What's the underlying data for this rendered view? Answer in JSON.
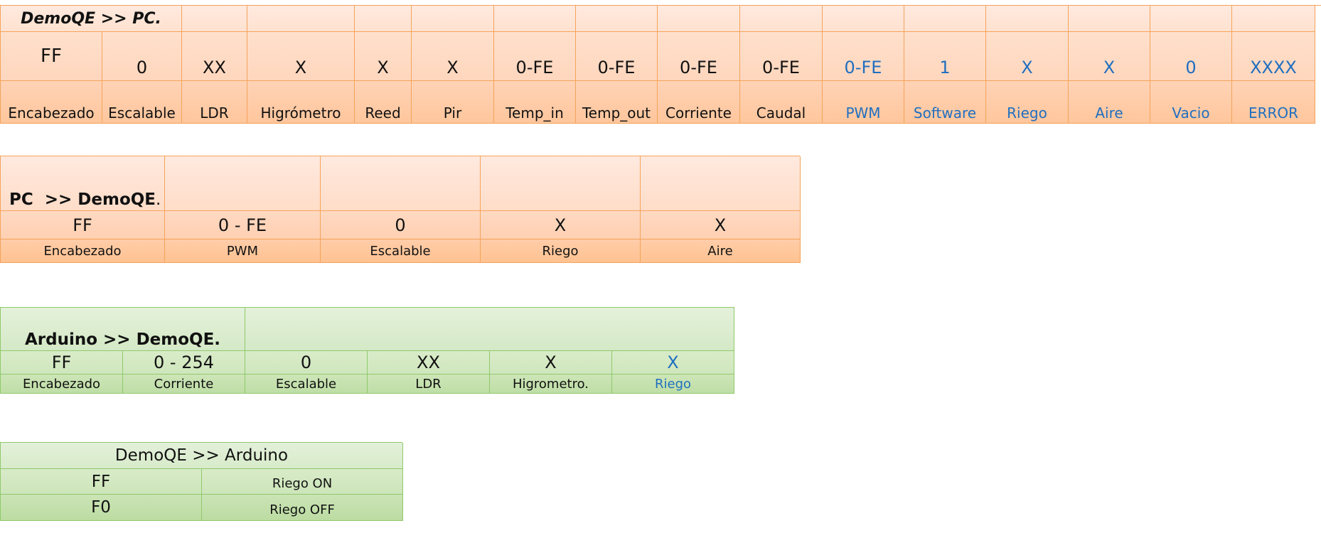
{
  "demoqe_to_pc": {
    "title": "DemoQE >> PC.",
    "values": [
      "FF",
      "0",
      "XX",
      "X",
      "X",
      "X",
      "0-FE",
      "0-FE",
      "0-FE",
      "0-FE",
      "0-FE",
      "1",
      "X",
      "X",
      "0",
      "XXXX"
    ],
    "labels": [
      "Encabezado",
      "Escalable",
      "LDR",
      "Higrómetro",
      "Reed",
      "Pir",
      "Temp_in",
      "Temp_out",
      "Corriente",
      "Caudal",
      "PWM",
      "Software",
      "Riego",
      "Aire",
      "Vacio",
      "ERROR"
    ]
  },
  "pc_to_demoqe": {
    "title": "PC  >> DemoQE",
    "title_suffix": ".",
    "values": [
      "FF",
      "0 - FE",
      "0",
      "X",
      "X"
    ],
    "labels": [
      "Encabezado",
      "PWM",
      "Escalable",
      "Riego",
      "Aire"
    ]
  },
  "arduino_to_demoqe": {
    "title": "Arduino >> DemoQE.",
    "values": [
      "FF",
      "0 - 254",
      "0",
      "XX",
      "X",
      "X"
    ],
    "labels": [
      "Encabezado",
      "Corriente",
      "Escalable",
      "LDR",
      "Higrometro.",
      "Riego"
    ]
  },
  "demoqe_to_arduino": {
    "title": "DemoQE >> Arduino",
    "rows": [
      {
        "code": "FF",
        "action": "Riego ON"
      },
      {
        "code": "F0",
        "action": "Riego OFF"
      }
    ]
  },
  "colors": {
    "blue_text": "#1f6fc0",
    "orange_border": "#f4a35a",
    "green_border": "#8fc96a"
  }
}
